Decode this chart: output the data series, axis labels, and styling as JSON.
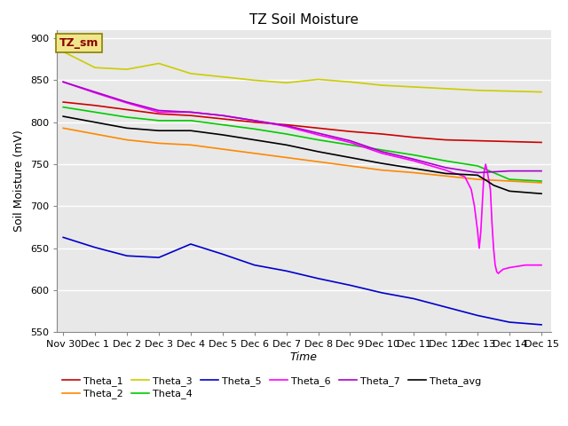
{
  "title": "TZ Soil Moisture",
  "xlabel": "Time",
  "ylabel": "Soil Moisture (mV)",
  "ylim": [
    550,
    910
  ],
  "yticks": [
    550,
    600,
    650,
    700,
    750,
    800,
    850,
    900
  ],
  "bg_color": "#e8e8e8",
  "fig_color": "#ffffff",
  "label_box": "TZ_sm",
  "xtick_labels": [
    "Nov 30",
    "Dec 1",
    "Dec 2",
    "Dec 3",
    "Dec 4",
    "Dec 5",
    "Dec 6",
    "Dec 7",
    "Dec 8",
    "Dec 9",
    "Dec 10",
    "Dec 11",
    "Dec 12",
    "Dec 13",
    "Dec 14",
    "Dec 15"
  ],
  "xtick_positions": [
    0,
    1,
    2,
    3,
    4,
    5,
    6,
    7,
    8,
    9,
    10,
    11,
    12,
    13,
    14,
    15
  ],
  "series": [
    {
      "name": "Theta_1",
      "color": "#cc0000",
      "points": [
        [
          0,
          824
        ],
        [
          1,
          820
        ],
        [
          2,
          815
        ],
        [
          3,
          810
        ],
        [
          4,
          808
        ],
        [
          5,
          804
        ],
        [
          6,
          800
        ],
        [
          7,
          797
        ],
        [
          8,
          793
        ],
        [
          9,
          789
        ],
        [
          10,
          786
        ],
        [
          11,
          782
        ],
        [
          12,
          779
        ],
        [
          13,
          778
        ],
        [
          14,
          777
        ],
        [
          15,
          776
        ]
      ]
    },
    {
      "name": "Theta_2",
      "color": "#ff8800",
      "points": [
        [
          0,
          793
        ],
        [
          1,
          786
        ],
        [
          2,
          779
        ],
        [
          3,
          775
        ],
        [
          4,
          773
        ],
        [
          5,
          768
        ],
        [
          6,
          763
        ],
        [
          7,
          758
        ],
        [
          8,
          753
        ],
        [
          9,
          748
        ],
        [
          10,
          743
        ],
        [
          11,
          740
        ],
        [
          12,
          736
        ],
        [
          13,
          732
        ],
        [
          14,
          730
        ],
        [
          15,
          728
        ]
      ]
    },
    {
      "name": "Theta_3",
      "color": "#cccc00",
      "points": [
        [
          0,
          884
        ],
        [
          1,
          865
        ],
        [
          2,
          863
        ],
        [
          3,
          870
        ],
        [
          4,
          858
        ],
        [
          5,
          854
        ],
        [
          6,
          850
        ],
        [
          7,
          847
        ],
        [
          8,
          851
        ],
        [
          9,
          848
        ],
        [
          10,
          844
        ],
        [
          11,
          842
        ],
        [
          12,
          840
        ],
        [
          13,
          838
        ],
        [
          14,
          837
        ],
        [
          15,
          836
        ]
      ]
    },
    {
      "name": "Theta_4",
      "color": "#00cc00",
      "points": [
        [
          0,
          818
        ],
        [
          1,
          812
        ],
        [
          2,
          806
        ],
        [
          3,
          802
        ],
        [
          4,
          802
        ],
        [
          5,
          797
        ],
        [
          6,
          792
        ],
        [
          7,
          786
        ],
        [
          8,
          779
        ],
        [
          9,
          773
        ],
        [
          10,
          767
        ],
        [
          11,
          761
        ],
        [
          12,
          754
        ],
        [
          13,
          748
        ],
        [
          14,
          732
        ],
        [
          15,
          730
        ]
      ]
    },
    {
      "name": "Theta_5",
      "color": "#0000cc",
      "points": [
        [
          0,
          663
        ],
        [
          1,
          651
        ],
        [
          2,
          641
        ],
        [
          3,
          639
        ],
        [
          4,
          655
        ],
        [
          5,
          643
        ],
        [
          6,
          630
        ],
        [
          7,
          623
        ],
        [
          8,
          614
        ],
        [
          9,
          606
        ],
        [
          10,
          597
        ],
        [
          11,
          590
        ],
        [
          12,
          580
        ],
        [
          13,
          570
        ],
        [
          14,
          562
        ],
        [
          15,
          559
        ]
      ]
    },
    {
      "name": "Theta_6",
      "color": "#ff00ff",
      "points": [
        [
          0,
          848
        ],
        [
          1,
          835
        ],
        [
          2,
          823
        ],
        [
          3,
          812
        ],
        [
          4,
          812
        ],
        [
          5,
          808
        ],
        [
          6,
          802
        ],
        [
          7,
          795
        ],
        [
          8,
          785
        ],
        [
          9,
          776
        ],
        [
          10,
          763
        ],
        [
          11,
          754
        ],
        [
          12,
          743
        ],
        [
          12.2,
          740
        ],
        [
          12.4,
          738
        ],
        [
          12.6,
          735
        ],
        [
          12.8,
          720
        ],
        [
          12.9,
          700
        ],
        [
          13.0,
          670
        ],
        [
          13.05,
          650
        ],
        [
          13.1,
          670
        ],
        [
          13.15,
          705
        ],
        [
          13.2,
          740
        ],
        [
          13.25,
          750
        ],
        [
          13.3,
          742
        ],
        [
          13.4,
          720
        ],
        [
          13.45,
          680
        ],
        [
          13.5,
          650
        ],
        [
          13.55,
          630
        ],
        [
          13.6,
          622
        ],
        [
          13.65,
          620
        ],
        [
          13.7,
          622
        ],
        [
          13.8,
          625
        ],
        [
          14.0,
          627
        ],
        [
          14.5,
          630
        ],
        [
          15,
          630
        ]
      ]
    },
    {
      "name": "Theta_7",
      "color": "#aa00cc",
      "points": [
        [
          0,
          848
        ],
        [
          1,
          836
        ],
        [
          2,
          824
        ],
        [
          3,
          814
        ],
        [
          4,
          812
        ],
        [
          5,
          808
        ],
        [
          6,
          802
        ],
        [
          7,
          796
        ],
        [
          8,
          787
        ],
        [
          9,
          778
        ],
        [
          10,
          765
        ],
        [
          11,
          756
        ],
        [
          12,
          746
        ],
        [
          13,
          740
        ],
        [
          14,
          742
        ],
        [
          15,
          742
        ]
      ]
    },
    {
      "name": "Theta_avg",
      "color": "#000000",
      "points": [
        [
          0,
          807
        ],
        [
          1,
          800
        ],
        [
          2,
          793
        ],
        [
          3,
          790
        ],
        [
          4,
          790
        ],
        [
          5,
          785
        ],
        [
          6,
          779
        ],
        [
          7,
          773
        ],
        [
          8,
          765
        ],
        [
          9,
          758
        ],
        [
          10,
          751
        ],
        [
          11,
          745
        ],
        [
          12,
          739
        ],
        [
          13,
          737
        ],
        [
          13.3,
          730
        ],
        [
          13.5,
          725
        ],
        [
          14,
          718
        ],
        [
          15,
          715
        ]
      ]
    }
  ],
  "legend_row1": [
    "Theta_1",
    "Theta_2",
    "Theta_3",
    "Theta_4",
    "Theta_5",
    "Theta_6"
  ],
  "legend_row2": [
    "Theta_7",
    "Theta_avg"
  ]
}
